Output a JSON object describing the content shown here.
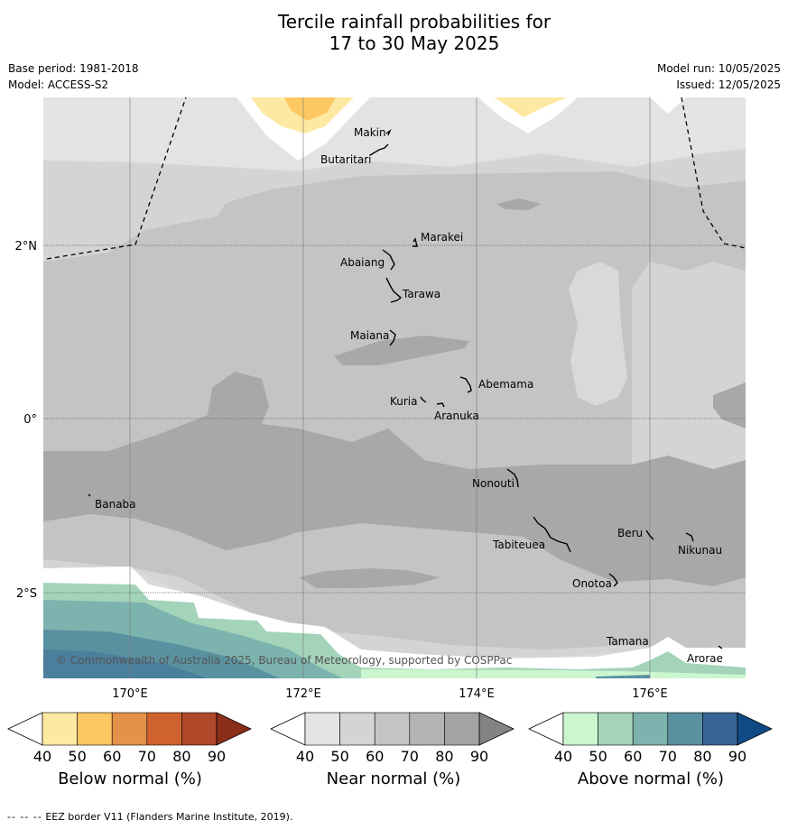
{
  "title": {
    "line1": "Tercile rainfall probabilities for",
    "line2": "17 to 30 May 2025"
  },
  "meta": {
    "base_period": "Base period: 1981-2018",
    "model": "Model: ACCESS-S2",
    "model_run": "Model run: 10/05/2025",
    "issued": "Issued: 12/05/2025"
  },
  "map": {
    "lon_labels": [
      "170°E",
      "172°E",
      "174°E",
      "176°E"
    ],
    "lat_labels": [
      "2°N",
      "0°",
      "2°S"
    ],
    "places": [
      {
        "name": "Makin",
        "lon": 173.0,
        "lat": 3.2
      },
      {
        "name": "Butaritari",
        "lon": 172.8,
        "lat": 3.05
      },
      {
        "name": "Marakei",
        "lon": 173.28,
        "lat": 2.0
      },
      {
        "name": "Abaiang",
        "lon": 172.95,
        "lat": 1.85
      },
      {
        "name": "Tarawa",
        "lon": 172.98,
        "lat": 1.42
      },
      {
        "name": "Maiana",
        "lon": 173.0,
        "lat": 0.92
      },
      {
        "name": "Abemama",
        "lon": 173.85,
        "lat": 0.4
      },
      {
        "name": "Kuria",
        "lon": 173.4,
        "lat": 0.22
      },
      {
        "name": "Aranuka",
        "lon": 173.6,
        "lat": 0.17
      },
      {
        "name": "Nonouti",
        "lon": 174.4,
        "lat": -0.65
      },
      {
        "name": "Banaba",
        "lon": 169.53,
        "lat": -0.87
      },
      {
        "name": "Tabiteuea",
        "lon": 174.9,
        "lat": -1.3
      },
      {
        "name": "Beru",
        "lon": 175.98,
        "lat": -1.35
      },
      {
        "name": "Nikunau",
        "lon": 176.45,
        "lat": -1.38
      },
      {
        "name": "Onotoa",
        "lon": 175.55,
        "lat": -1.82
      },
      {
        "name": "Tamana",
        "lon": 175.98,
        "lat": -2.5
      },
      {
        "name": "Arorae",
        "lon": 176.82,
        "lat": -2.65
      }
    ],
    "copyright": "© Commonwealth of Australia 2025, Bureau of Meteorology, supported by COSPPac"
  },
  "colorbars": [
    {
      "label": "Below normal (%)",
      "ticks": [
        "40",
        "50",
        "60",
        "70",
        "80",
        "90"
      ],
      "colors": [
        "#ffffff",
        "#fde9a2",
        "#fdc762",
        "#e4914a",
        "#d0622f",
        "#b0482a",
        "#8a2e1a"
      ]
    },
    {
      "label": "Near normal (%)",
      "ticks": [
        "40",
        "50",
        "60",
        "70",
        "80",
        "90"
      ],
      "colors": [
        "#ffffff",
        "#e3e3e3",
        "#d4d4d4",
        "#c4c4c4",
        "#b4b4b4",
        "#a3a3a3",
        "#838383"
      ]
    },
    {
      "label": "Above normal (%)",
      "ticks": [
        "40",
        "50",
        "60",
        "70",
        "80",
        "90"
      ],
      "colors": [
        "#ffffff",
        "#ccf6cf",
        "#a3d4ba",
        "#7cb3ae",
        "#5a91a0",
        "#376596",
        "#0f4a85"
      ]
    }
  ],
  "footnote": {
    "dash": "-- -- --",
    "text": "EEZ border V11 (Flanders Marine Institute, 2019)."
  }
}
